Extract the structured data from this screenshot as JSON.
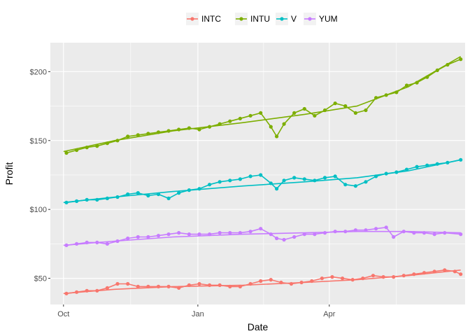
{
  "chart_data": {
    "type": "line",
    "title": "",
    "xlabel": "Date",
    "ylabel": "Profit",
    "x_tick_labels": [
      "Oct",
      "Jan",
      "Apr"
    ],
    "x_ticks": [
      "2016-10-01",
      "2017-01-01",
      "2017-04-01"
    ],
    "x_range": [
      "2016-09-22",
      "2017-07-03"
    ],
    "y_ticks": [
      50,
      100,
      150,
      200
    ],
    "y_tick_labels": [
      "$50",
      "$100",
      "$150",
      "$200"
    ],
    "ylim": [
      31,
      221
    ],
    "legend_position": "top",
    "grid": true,
    "markers": "points",
    "trend_lines": true,
    "series": [
      {
        "name": "INTC",
        "color": "#F8766D",
        "points": [
          [
            "2016-10-03",
            39
          ],
          [
            "2016-10-10",
            40
          ],
          [
            "2016-10-17",
            41
          ],
          [
            "2016-10-24",
            41
          ],
          [
            "2016-10-31",
            43
          ],
          [
            "2016-11-07",
            46
          ],
          [
            "2016-11-14",
            46
          ],
          [
            "2016-11-21",
            44
          ],
          [
            "2016-11-28",
            44
          ],
          [
            "2016-12-05",
            44
          ],
          [
            "2016-12-12",
            44
          ],
          [
            "2016-12-19",
            43
          ],
          [
            "2016-12-26",
            45
          ],
          [
            "2017-01-02",
            46
          ],
          [
            "2017-01-09",
            45
          ],
          [
            "2017-01-16",
            45
          ],
          [
            "2017-01-23",
            44
          ],
          [
            "2017-01-30",
            44
          ],
          [
            "2017-02-06",
            46
          ],
          [
            "2017-02-13",
            48
          ],
          [
            "2017-02-20",
            49
          ],
          [
            "2017-02-27",
            47
          ],
          [
            "2017-03-06",
            46
          ],
          [
            "2017-03-13",
            47
          ],
          [
            "2017-03-20",
            48
          ],
          [
            "2017-03-27",
            50
          ],
          [
            "2017-04-03",
            51
          ],
          [
            "2017-04-10",
            50
          ],
          [
            "2017-04-17",
            49
          ],
          [
            "2017-04-24",
            50
          ],
          [
            "2017-05-01",
            52
          ],
          [
            "2017-05-08",
            51
          ],
          [
            "2017-05-15",
            51
          ],
          [
            "2017-05-22",
            52
          ],
          [
            "2017-05-29",
            53
          ],
          [
            "2017-06-05",
            54
          ],
          [
            "2017-06-12",
            55
          ],
          [
            "2017-06-19",
            56
          ],
          [
            "2017-06-26",
            55
          ],
          [
            "2017-06-30",
            53
          ]
        ],
        "trend": [
          [
            "2016-10-01",
            39
          ],
          [
            "2016-11-05",
            42
          ],
          [
            "2016-12-15",
            44
          ],
          [
            "2017-02-01",
            45
          ],
          [
            "2017-03-15",
            47
          ],
          [
            "2017-04-20",
            49
          ],
          [
            "2017-05-25",
            52
          ],
          [
            "2017-06-30",
            56
          ]
        ]
      },
      {
        "name": "INTU",
        "color": "#7CAE00",
        "points": [
          [
            "2016-10-03",
            141
          ],
          [
            "2016-10-10",
            143
          ],
          [
            "2016-10-17",
            145
          ],
          [
            "2016-10-24",
            146
          ],
          [
            "2016-10-31",
            148
          ],
          [
            "2016-11-07",
            150
          ],
          [
            "2016-11-14",
            153
          ],
          [
            "2016-11-21",
            154
          ],
          [
            "2016-11-28",
            155
          ],
          [
            "2016-12-05",
            156
          ],
          [
            "2016-12-12",
            157
          ],
          [
            "2016-12-19",
            158
          ],
          [
            "2016-12-26",
            159
          ],
          [
            "2017-01-02",
            158
          ],
          [
            "2017-01-09",
            160
          ],
          [
            "2017-01-16",
            162
          ],
          [
            "2017-01-23",
            164
          ],
          [
            "2017-01-30",
            166
          ],
          [
            "2017-02-06",
            168
          ],
          [
            "2017-02-13",
            170
          ],
          [
            "2017-02-20",
            160
          ],
          [
            "2017-02-24",
            153
          ],
          [
            "2017-03-01",
            162
          ],
          [
            "2017-03-08",
            170
          ],
          [
            "2017-03-15",
            173
          ],
          [
            "2017-03-22",
            168
          ],
          [
            "2017-03-29",
            172
          ],
          [
            "2017-04-05",
            177
          ],
          [
            "2017-04-12",
            175
          ],
          [
            "2017-04-19",
            170
          ],
          [
            "2017-04-26",
            172
          ],
          [
            "2017-05-03",
            181
          ],
          [
            "2017-05-10",
            183
          ],
          [
            "2017-05-17",
            185
          ],
          [
            "2017-05-24",
            190
          ],
          [
            "2017-05-31",
            192
          ],
          [
            "2017-06-07",
            196
          ],
          [
            "2017-06-14",
            201
          ],
          [
            "2017-06-21",
            205
          ],
          [
            "2017-06-30",
            209
          ]
        ],
        "trend": [
          [
            "2016-10-01",
            142
          ],
          [
            "2016-11-05",
            150
          ],
          [
            "2016-12-15",
            157
          ],
          [
            "2017-02-01",
            163
          ],
          [
            "2017-03-15",
            169
          ],
          [
            "2017-04-20",
            175
          ],
          [
            "2017-05-25",
            189
          ],
          [
            "2017-06-30",
            211
          ]
        ]
      },
      {
        "name": "V",
        "color": "#00BFC4",
        "points": [
          [
            "2016-10-03",
            105
          ],
          [
            "2016-10-10",
            106
          ],
          [
            "2016-10-17",
            107
          ],
          [
            "2016-10-24",
            107
          ],
          [
            "2016-10-31",
            108
          ],
          [
            "2016-11-07",
            109
          ],
          [
            "2016-11-14",
            111
          ],
          [
            "2016-11-21",
            112
          ],
          [
            "2016-11-28",
            110
          ],
          [
            "2016-12-05",
            111
          ],
          [
            "2016-12-12",
            108
          ],
          [
            "2016-12-19",
            112
          ],
          [
            "2016-12-26",
            114
          ],
          [
            "2017-01-02",
            115
          ],
          [
            "2017-01-09",
            118
          ],
          [
            "2017-01-16",
            120
          ],
          [
            "2017-01-23",
            121
          ],
          [
            "2017-01-30",
            122
          ],
          [
            "2017-02-06",
            124
          ],
          [
            "2017-02-13",
            125
          ],
          [
            "2017-02-20",
            119
          ],
          [
            "2017-02-24",
            115
          ],
          [
            "2017-03-01",
            121
          ],
          [
            "2017-03-08",
            123
          ],
          [
            "2017-03-15",
            122
          ],
          [
            "2017-03-22",
            121
          ],
          [
            "2017-03-29",
            123
          ],
          [
            "2017-04-05",
            124
          ],
          [
            "2017-04-12",
            118
          ],
          [
            "2017-04-19",
            117
          ],
          [
            "2017-04-26",
            120
          ],
          [
            "2017-05-03",
            124
          ],
          [
            "2017-05-10",
            126
          ],
          [
            "2017-05-17",
            127
          ],
          [
            "2017-05-24",
            129
          ],
          [
            "2017-05-31",
            131
          ],
          [
            "2017-06-07",
            132
          ],
          [
            "2017-06-14",
            133
          ],
          [
            "2017-06-21",
            134
          ],
          [
            "2017-06-30",
            136
          ]
        ],
        "trend": [
          [
            "2016-10-01",
            105
          ],
          [
            "2016-11-05",
            109
          ],
          [
            "2016-12-15",
            113
          ],
          [
            "2017-02-01",
            117
          ],
          [
            "2017-03-15",
            120
          ],
          [
            "2017-04-20",
            123
          ],
          [
            "2017-05-25",
            128
          ],
          [
            "2017-06-30",
            136
          ]
        ]
      },
      {
        "name": "YUM",
        "color": "#C77CFF",
        "points": [
          [
            "2016-10-03",
            74
          ],
          [
            "2016-10-10",
            75
          ],
          [
            "2016-10-17",
            76
          ],
          [
            "2016-10-24",
            76
          ],
          [
            "2016-10-31",
            75
          ],
          [
            "2016-11-07",
            77
          ],
          [
            "2016-11-14",
            79
          ],
          [
            "2016-11-21",
            80
          ],
          [
            "2016-11-28",
            80
          ],
          [
            "2016-12-05",
            81
          ],
          [
            "2016-12-12",
            82
          ],
          [
            "2016-12-19",
            83
          ],
          [
            "2016-12-26",
            82
          ],
          [
            "2017-01-02",
            82
          ],
          [
            "2017-01-09",
            82
          ],
          [
            "2017-01-16",
            83
          ],
          [
            "2017-01-23",
            83
          ],
          [
            "2017-01-30",
            83
          ],
          [
            "2017-02-06",
            84
          ],
          [
            "2017-02-13",
            86
          ],
          [
            "2017-02-20",
            82
          ],
          [
            "2017-02-24",
            79
          ],
          [
            "2017-03-01",
            78
          ],
          [
            "2017-03-08",
            80
          ],
          [
            "2017-03-15",
            82
          ],
          [
            "2017-03-22",
            82
          ],
          [
            "2017-03-29",
            83
          ],
          [
            "2017-04-05",
            84
          ],
          [
            "2017-04-12",
            84
          ],
          [
            "2017-04-19",
            85
          ],
          [
            "2017-04-26",
            85
          ],
          [
            "2017-05-03",
            86
          ],
          [
            "2017-05-10",
            87
          ],
          [
            "2017-05-15",
            80
          ],
          [
            "2017-05-22",
            84
          ],
          [
            "2017-05-29",
            83
          ],
          [
            "2017-06-05",
            83
          ],
          [
            "2017-06-12",
            82
          ],
          [
            "2017-06-19",
            83
          ],
          [
            "2017-06-30",
            82
          ]
        ],
        "trend": [
          [
            "2016-10-01",
            74
          ],
          [
            "2016-11-05",
            77
          ],
          [
            "2016-12-15",
            80
          ],
          [
            "2017-02-01",
            82
          ],
          [
            "2017-03-15",
            83
          ],
          [
            "2017-04-20",
            84
          ],
          [
            "2017-05-25",
            84
          ],
          [
            "2017-06-30",
            83
          ]
        ]
      }
    ]
  }
}
